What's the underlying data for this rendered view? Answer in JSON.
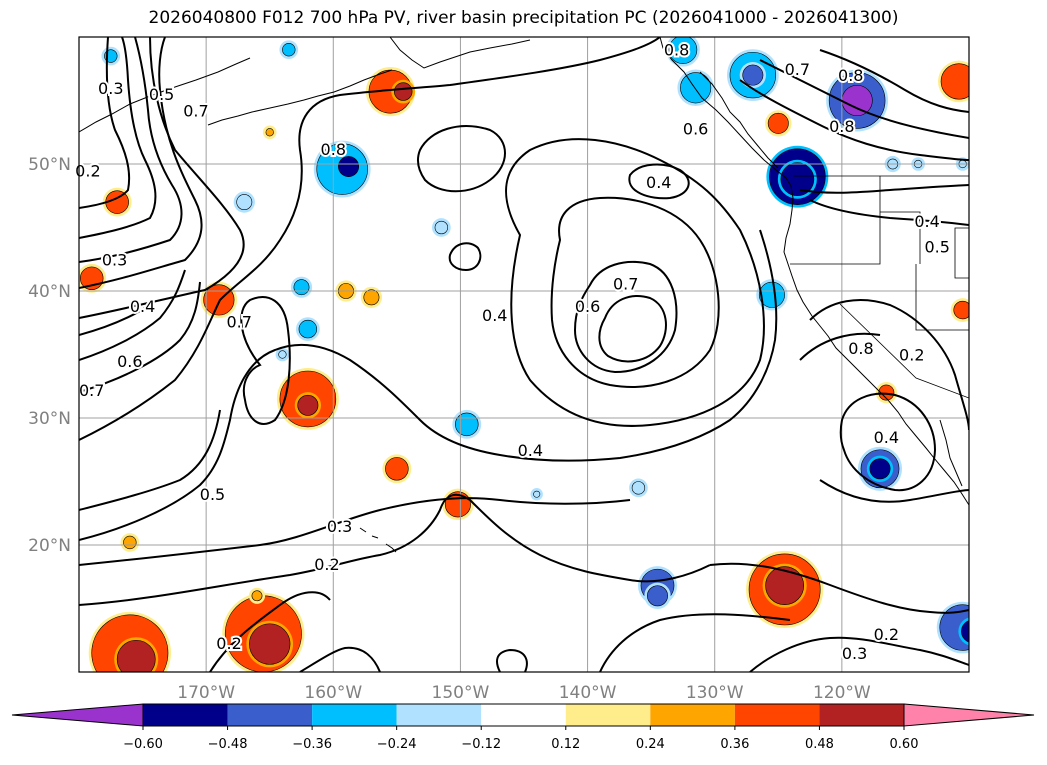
{
  "title": "2026040800 F012 700 hPa PV, river basin precipitation PC (2026041000 - 2026041300)",
  "map": {
    "lon_range": [
      -180,
      -110
    ],
    "lat_range": [
      10,
      60
    ],
    "lon_ticks": [
      {
        "value": -170,
        "label": "170°W"
      },
      {
        "value": -160,
        "label": "160°W"
      },
      {
        "value": -150,
        "label": "150°W"
      },
      {
        "value": -140,
        "label": "140°W"
      },
      {
        "value": -130,
        "label": "130°W"
      },
      {
        "value": -120,
        "label": "120°W"
      }
    ],
    "lat_ticks": [
      {
        "value": 20,
        "label": "20°N"
      },
      {
        "value": 30,
        "label": "30°N"
      },
      {
        "value": 40,
        "label": "40°N"
      },
      {
        "value": 50,
        "label": "50°N"
      }
    ],
    "grid": true,
    "contour_color": "#000000",
    "coastline_color": "#000000",
    "contour_labels": [
      {
        "text": "0.2",
        "lon": -179.3,
        "lat": 49.5
      },
      {
        "text": "0.3",
        "lon": -177.5,
        "lat": 56.0
      },
      {
        "text": "0.5",
        "lon": -173.5,
        "lat": 55.5
      },
      {
        "text": "0.7",
        "lon": -170.8,
        "lat": 54.2
      },
      {
        "text": "0.3",
        "lon": -177.2,
        "lat": 42.5
      },
      {
        "text": "0.4",
        "lon": -175.0,
        "lat": 38.8
      },
      {
        "text": "0.6",
        "lon": -176.0,
        "lat": 34.5
      },
      {
        "text": "0.7",
        "lon": -179.0,
        "lat": 32.2
      },
      {
        "text": "0.7",
        "lon": -167.4,
        "lat": 37.6
      },
      {
        "text": "0.8",
        "lon": -160.0,
        "lat": 51.2
      },
      {
        "text": "0.4",
        "lon": -134.4,
        "lat": 48.6
      },
      {
        "text": "0.4",
        "lon": -147.3,
        "lat": 38.1
      },
      {
        "text": "0.6",
        "lon": -140.0,
        "lat": 38.8
      },
      {
        "text": "0.7",
        "lon": -137.0,
        "lat": 40.6
      },
      {
        "text": "0.4",
        "lon": -144.5,
        "lat": 27.5
      },
      {
        "text": "0.5",
        "lon": -169.5,
        "lat": 24.0
      },
      {
        "text": "0.3",
        "lon": -159.5,
        "lat": 21.5
      },
      {
        "text": "0.2",
        "lon": -160.5,
        "lat": 18.5
      },
      {
        "text": "0.2",
        "lon": -168.2,
        "lat": 12.3
      },
      {
        "text": "0.8",
        "lon": -120.0,
        "lat": 53.0
      },
      {
        "text": "0.6",
        "lon": -131.5,
        "lat": 52.8
      },
      {
        "text": "0.4",
        "lon": -113.3,
        "lat": 45.5
      },
      {
        "text": "0.5",
        "lon": -112.5,
        "lat": 43.5
      },
      {
        "text": "0.8",
        "lon": -119.3,
        "lat": 57.0
      },
      {
        "text": "0.7",
        "lon": -123.5,
        "lat": 57.5
      },
      {
        "text": "0.8",
        "lon": -118.5,
        "lat": 35.5
      },
      {
        "text": "0.2",
        "lon": -114.5,
        "lat": 35.0
      },
      {
        "text": "0.4",
        "lon": -116.5,
        "lat": 28.5
      },
      {
        "text": "0.2",
        "lon": -116.5,
        "lat": 13.0
      },
      {
        "text": "0.3",
        "lon": -119.0,
        "lat": 11.5
      },
      {
        "text": "0.8",
        "lon": -133.0,
        "lat": 59.0
      }
    ],
    "blobs": [
      {
        "lon": -124.5,
        "lat": 16.5,
        "r": 2.8,
        "v": 0.45
      },
      {
        "lon": -124.5,
        "lat": 16.8,
        "r": 1.5,
        "v": 0.55
      },
      {
        "lon": -165.5,
        "lat": 13.0,
        "r": 3.0,
        "v": 0.45
      },
      {
        "lon": -165.0,
        "lat": 12.2,
        "r": 1.6,
        "v": 0.55
      },
      {
        "lon": -176.0,
        "lat": 11.5,
        "r": 3.0,
        "v": 0.45
      },
      {
        "lon": -175.5,
        "lat": 11.0,
        "r": 1.5,
        "v": 0.55
      },
      {
        "lon": -155.5,
        "lat": 55.7,
        "r": 1.7,
        "v": 0.4
      },
      {
        "lon": -154.5,
        "lat": 55.7,
        "r": 0.7,
        "v": 0.5
      },
      {
        "lon": -162.0,
        "lat": 31.5,
        "r": 2.2,
        "v": 0.4
      },
      {
        "lon": -162.0,
        "lat": 31.0,
        "r": 0.8,
        "v": 0.5
      },
      {
        "lon": -169.0,
        "lat": 39.3,
        "r": 1.2,
        "v": 0.4
      },
      {
        "lon": -155.0,
        "lat": 26.0,
        "r": 0.9,
        "v": 0.4
      },
      {
        "lon": -150.2,
        "lat": 23.2,
        "r": 1.0,
        "v": 0.4
      },
      {
        "lon": -177.0,
        "lat": 47.0,
        "r": 0.9,
        "v": 0.4
      },
      {
        "lon": -179.0,
        "lat": 41.0,
        "r": 0.9,
        "v": 0.4
      },
      {
        "lon": -165.0,
        "lat": 52.5,
        "r": 0.3,
        "v": 0.3
      },
      {
        "lon": -110.8,
        "lat": 56.5,
        "r": 1.4,
        "v": 0.4
      },
      {
        "lon": -125.0,
        "lat": 53.2,
        "r": 0.8,
        "v": 0.4
      },
      {
        "lon": -110.5,
        "lat": 38.5,
        "r": 0.7,
        "v": 0.4
      },
      {
        "lon": -116.5,
        "lat": 32.0,
        "r": 0.6,
        "v": 0.4
      },
      {
        "lon": -157.0,
        "lat": 39.5,
        "r": 0.6,
        "v": 0.35
      },
      {
        "lon": -176.0,
        "lat": 20.2,
        "r": 0.5,
        "v": 0.35
      },
      {
        "lon": -166.0,
        "lat": 16.0,
        "r": 0.4,
        "v": 0.3
      },
      {
        "lon": -159.0,
        "lat": 40.0,
        "r": 0.6,
        "v": 0.3
      },
      {
        "lon": -118.8,
        "lat": 55.0,
        "r": 2.2,
        "v": -0.45
      },
      {
        "lon": -118.8,
        "lat": 55.0,
        "r": 1.2,
        "v": -0.62
      },
      {
        "lon": -123.5,
        "lat": 49.0,
        "r": 2.2,
        "v": -0.5
      },
      {
        "lon": -123.5,
        "lat": 48.8,
        "r": 1.3,
        "v": -0.55
      },
      {
        "lon": -127.0,
        "lat": 57.0,
        "r": 1.8,
        "v": -0.35
      },
      {
        "lon": -127.0,
        "lat": 57.0,
        "r": 0.8,
        "v": -0.45
      },
      {
        "lon": -131.5,
        "lat": 56.0,
        "r": 1.2,
        "v": -0.3
      },
      {
        "lon": -159.3,
        "lat": 49.6,
        "r": 2.0,
        "v": -0.35
      },
      {
        "lon": -158.8,
        "lat": 49.8,
        "r": 0.8,
        "v": -0.5
      },
      {
        "lon": -117.0,
        "lat": 26.0,
        "r": 1.5,
        "v": -0.4
      },
      {
        "lon": -117.0,
        "lat": 26.0,
        "r": 0.8,
        "v": -0.55
      },
      {
        "lon": -110.5,
        "lat": 13.5,
        "r": 1.8,
        "v": -0.4
      },
      {
        "lon": -109.7,
        "lat": 13.2,
        "r": 0.9,
        "v": -0.55
      },
      {
        "lon": -134.5,
        "lat": 16.8,
        "r": 1.3,
        "v": -0.36
      },
      {
        "lon": -134.5,
        "lat": 16.0,
        "r": 0.8,
        "v": -0.4
      },
      {
        "lon": -125.5,
        "lat": 39.7,
        "r": 1.0,
        "v": -0.35
      },
      {
        "lon": -162.0,
        "lat": 37.0,
        "r": 0.7,
        "v": -0.35
      },
      {
        "lon": -162.5,
        "lat": 40.3,
        "r": 0.6,
        "v": -0.3
      },
      {
        "lon": -149.5,
        "lat": 29.5,
        "r": 0.9,
        "v": -0.3
      },
      {
        "lon": -177.5,
        "lat": 58.5,
        "r": 0.5,
        "v": -0.3
      },
      {
        "lon": -163.5,
        "lat": 59.0,
        "r": 0.5,
        "v": -0.3
      },
      {
        "lon": -151.5,
        "lat": 45.0,
        "r": 0.5,
        "v": -0.2
      },
      {
        "lon": -167.0,
        "lat": 47.0,
        "r": 0.6,
        "v": -0.2
      },
      {
        "lon": -132.5,
        "lat": 59.0,
        "r": 1.1,
        "v": -0.35
      },
      {
        "lon": -136.0,
        "lat": 24.5,
        "r": 0.5,
        "v": -0.2
      },
      {
        "lon": -116.0,
        "lat": 50.0,
        "r": 0.4,
        "v": -0.2
      },
      {
        "lon": -114.0,
        "lat": 50.0,
        "r": 0.3,
        "v": -0.2
      },
      {
        "lon": -144.0,
        "lat": 24.0,
        "r": 0.25,
        "v": -0.2
      },
      {
        "lon": -110.5,
        "lat": 50.0,
        "r": 0.3,
        "v": -0.2
      },
      {
        "lon": -164.0,
        "lat": 35.0,
        "r": 0.3,
        "v": -0.2
      }
    ]
  },
  "colorbar": {
    "colors": [
      "#9a32cd",
      "#00008b",
      "#3a5fcd",
      "#00bfff",
      "#b0e2ff",
      "#ffffff",
      "#ffec8b",
      "#ffa500",
      "#ff4500",
      "#b22222",
      "#ff82ab"
    ],
    "levels": [
      -0.6,
      -0.48,
      -0.36,
      -0.24,
      -0.12,
      0.12,
      0.24,
      0.36,
      0.48,
      0.6
    ],
    "tick_labels": [
      "−0.60",
      "−0.48",
      "−0.36",
      "−0.24",
      "−0.12",
      "0.12",
      "0.24",
      "0.36",
      "0.48",
      "0.60"
    ]
  }
}
